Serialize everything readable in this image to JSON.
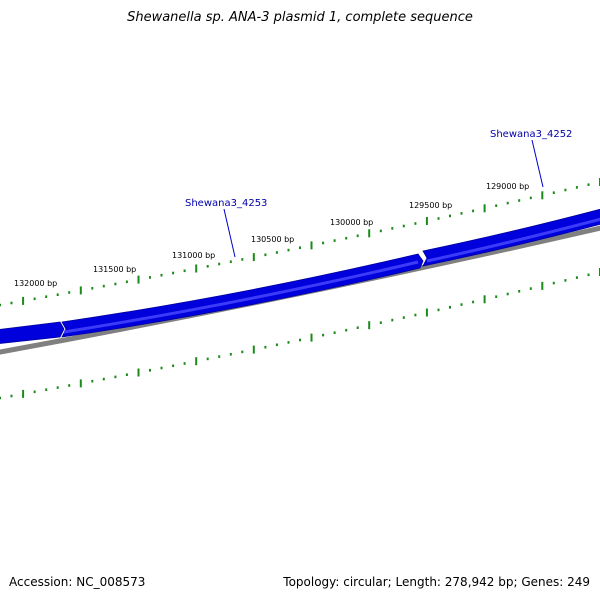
{
  "title": "Shewanella sp. ANA-3 plasmid 1, complete sequence",
  "footer": {
    "accession": "Accession: NC_008573",
    "topology": "Topology: circular; Length: 278,942 bp; Genes: 249"
  },
  "colors": {
    "gene": "#0000dd",
    "gene_light": "#2a2aff",
    "backbone": "#808080",
    "ticks": "#1a8a1a",
    "label": "#0000aa"
  },
  "ticks": [
    {
      "label": "132000 bp"
    },
    {
      "label": "131500 bp"
    },
    {
      "label": "131000 bp"
    },
    {
      "label": "130500 bp"
    },
    {
      "label": "130000 bp"
    },
    {
      "label": "129500 bp"
    },
    {
      "label": "129000 bp"
    }
  ],
  "genes": [
    {
      "label": "Shewana3_4253"
    },
    {
      "label": "Shewana3_4252"
    }
  ]
}
